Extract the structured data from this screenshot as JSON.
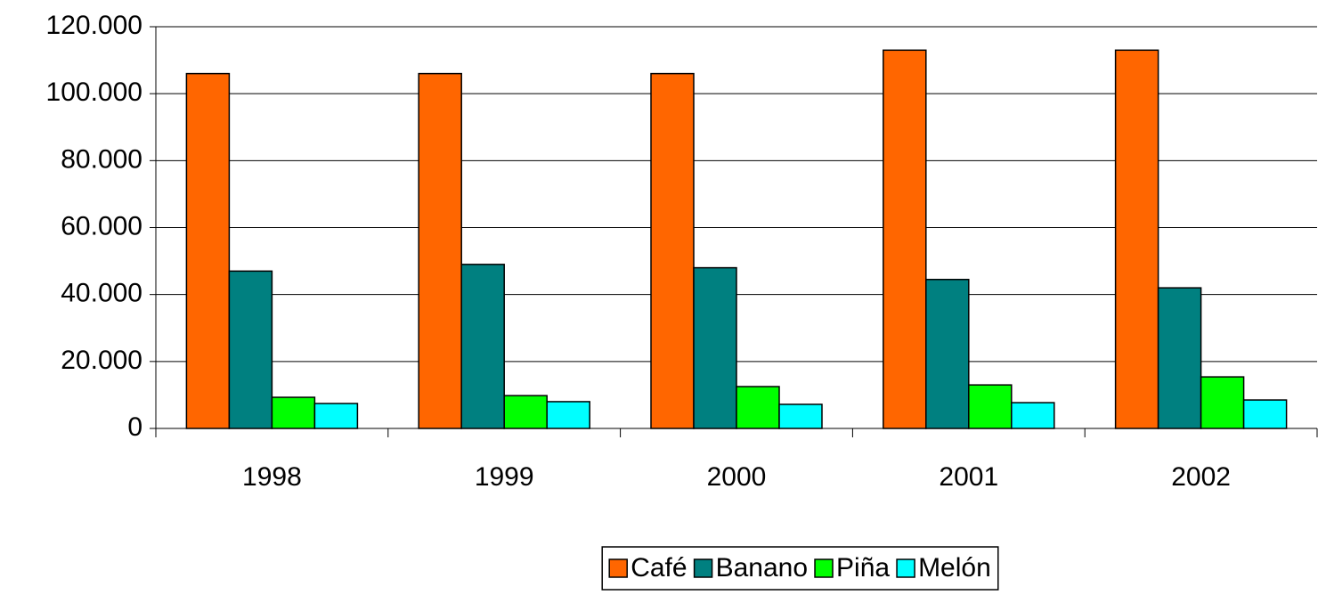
{
  "chart_data": {
    "type": "bar",
    "categories": [
      "1998",
      "1999",
      "2000",
      "2001",
      "2002"
    ],
    "series": [
      {
        "name": "Café",
        "color": "#ff6600",
        "values": [
          106000,
          106000,
          106000,
          113000,
          113000
        ]
      },
      {
        "name": "Banano",
        "color": "#008080",
        "values": [
          47000,
          49000,
          48000,
          44500,
          42000
        ]
      },
      {
        "name": "Piña",
        "color": "#00ff00",
        "values": [
          9300,
          9800,
          12500,
          13000,
          15400
        ]
      },
      {
        "name": "Melón",
        "color": "#00ffff",
        "values": [
          7450,
          8000,
          7200,
          7700,
          8500
        ]
      }
    ],
    "ylim": [
      0,
      120000
    ],
    "yticks": [
      0,
      {
        "value": 20000,
        "label": "20.000"
      },
      {
        "value": 40000,
        "label": "40.000"
      },
      {
        "value": 60000,
        "label": "60.000"
      },
      {
        "value": 80000,
        "label": "80.000"
      },
      {
        "value": 100000,
        "label": "100.000"
      },
      {
        "value": 120000,
        "label": "120.000"
      }
    ],
    "grid": true,
    "legend": "bottom"
  }
}
